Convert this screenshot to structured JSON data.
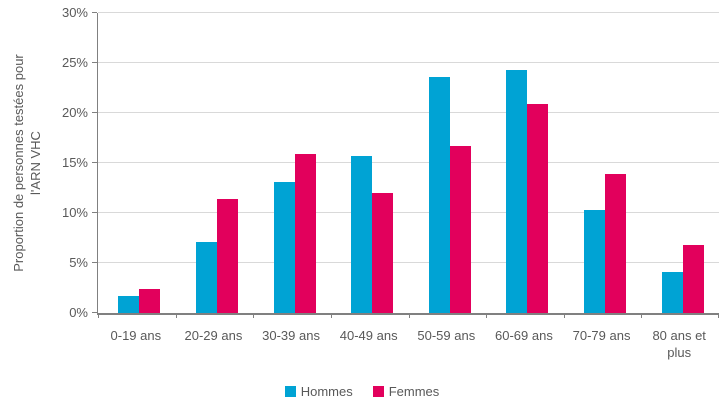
{
  "chart_data": {
    "type": "bar",
    "title": "",
    "xlabel": "",
    "ylabel": "Proportion de personnes testées pour l'ARN VHC",
    "ylabel_lines": [
      "Proportion de personnes testées pour",
      "l'ARN VHC"
    ],
    "categories": [
      "0-19 ans",
      "20-29 ans",
      "30-39 ans",
      "40-49 ans",
      "50-59 ans",
      "60-69 ans",
      "70-79 ans",
      "80 ans et plus"
    ],
    "series": [
      {
        "name": "Hommes",
        "color": "#00A3D4",
        "values": [
          1.7,
          7.1,
          13.1,
          15.7,
          23.6,
          24.3,
          10.3,
          4.1
        ]
      },
      {
        "name": "Femmes",
        "color": "#E2005C",
        "values": [
          2.4,
          11.4,
          15.9,
          12.0,
          16.7,
          20.9,
          13.9,
          6.8
        ]
      }
    ],
    "y_ticks": [
      "0%",
      "5%",
      "10%",
      "15%",
      "20%",
      "25%",
      "30%"
    ],
    "ylim": [
      0,
      30
    ],
    "grid": true,
    "legend_position": "bottom",
    "colors": {
      "grid": "#D9D9D9",
      "axis": "#808080",
      "text": "#595959",
      "background": "#FFFFFF"
    }
  }
}
